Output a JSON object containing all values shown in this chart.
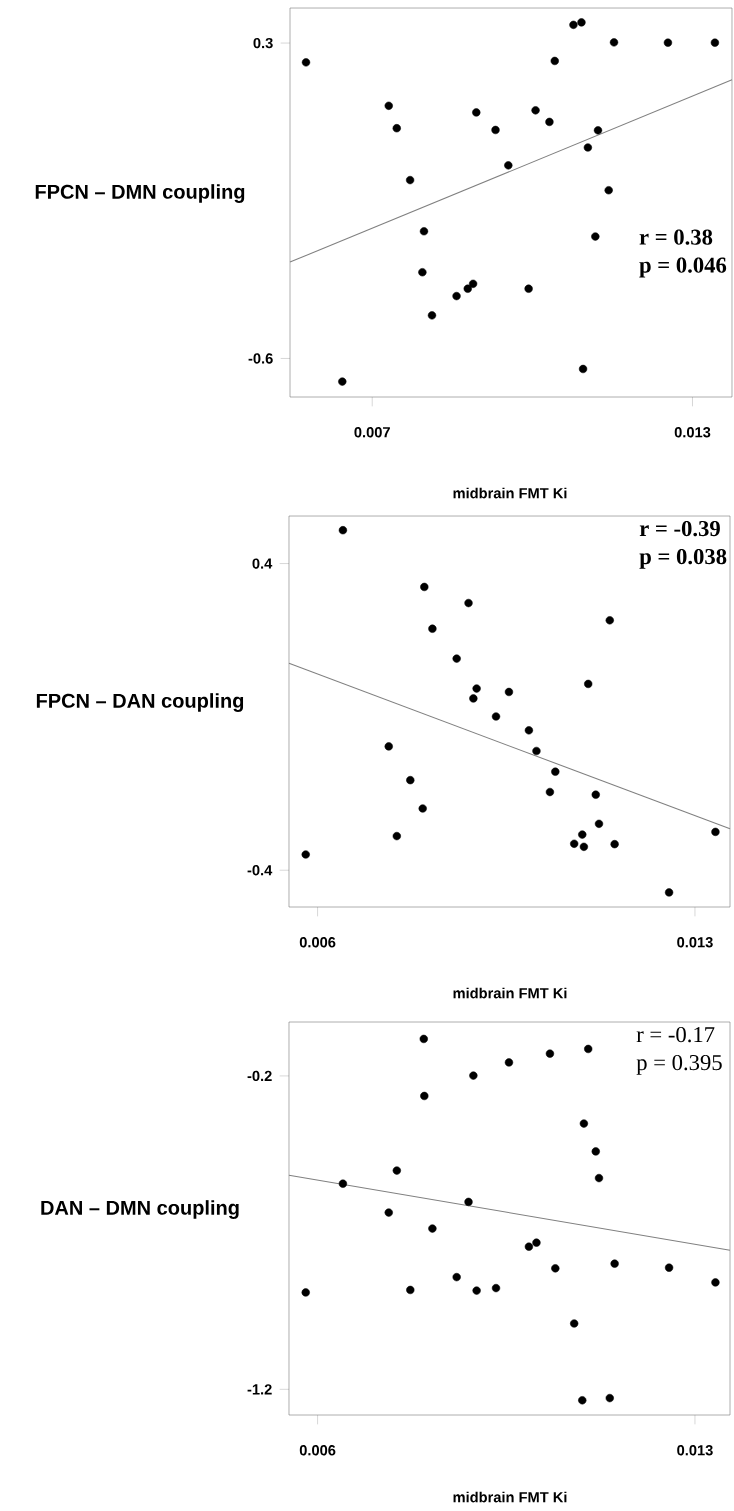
{
  "chart_data": [
    {
      "type": "scatter",
      "ylabel": "FPCN – DMN coupling",
      "xlabel": "midbrain FMT Ki",
      "xlim": [
        0.00546,
        0.01374
      ],
      "ylim": [
        -0.71,
        0.4
      ],
      "xticks": [
        0.007,
        0.013
      ],
      "yticks": [
        -0.6,
        0.3
      ],
      "series": [
        {
          "marker": "circle",
          "color": "#000000",
          "x": [
            0.00576,
            0.00644,
            0.00731,
            0.00746,
            0.00771,
            0.00797,
            0.00794,
            0.00812,
            0.00858,
            0.00879,
            0.00889,
            0.00895,
            0.00931,
            0.00955,
            0.00993,
            0.01006,
            0.01032,
            0.01042,
            0.01077,
            0.01092,
            0.01095,
            0.01104,
            0.01123,
            0.01118,
            0.01143,
            0.01153,
            0.01254,
            0.01342
          ],
          "values": [
            0.245,
            -0.666,
            0.121,
            0.057,
            -0.091,
            -0.237,
            -0.354,
            -0.477,
            -0.422,
            -0.401,
            -0.387,
            0.102,
            0.052,
            -0.049,
            -0.401,
            0.108,
            0.075,
            0.249,
            0.352,
            0.359,
            -0.63,
            0.002,
            0.051,
            -0.252,
            -0.12,
            0.302,
            0.301,
            0.301
          ]
        },
        {
          "type": "line",
          "marker": "none",
          "color": "#808080",
          "x": [
            0.00546,
            0.01374
          ],
          "values": [
            -0.325,
            0.195
          ]
        }
      ],
      "annotations": [
        "r = 0.38",
        "p = 0.046"
      ]
    },
    {
      "type": "scatter",
      "ylabel": "FPCN – DAN coupling",
      "xlabel": "midbrain FMT Ki",
      "xlim": [
        0.00547,
        0.01365
      ],
      "ylim": [
        -0.496,
        0.524
      ],
      "xticks": [
        0.006,
        0.013
      ],
      "yticks": [
        -0.4,
        0.4
      ],
      "series": [
        {
          "marker": "circle",
          "color": "#000000",
          "x": [
            0.00578,
            0.00647,
            0.00732,
            0.00747,
            0.00772,
            0.00798,
            0.00795,
            0.00813,
            0.00858,
            0.0088,
            0.00889,
            0.00895,
            0.00931,
            0.00955,
            0.00992,
            0.01006,
            0.01041,
            0.01031,
            0.01076,
            0.01091,
            0.01094,
            0.01102,
            0.01116,
            0.01122,
            0.01142,
            0.01151,
            0.01252,
            0.01338
          ],
          "values": [
            -0.359,
            0.487,
            -0.077,
            -0.311,
            -0.165,
            0.339,
            -0.239,
            0.23,
            0.152,
            0.297,
            0.048,
            0.074,
            0.001,
            0.065,
            -0.035,
            -0.089,
            -0.143,
            -0.196,
            -0.331,
            -0.307,
            -0.339,
            0.086,
            -0.203,
            -0.279,
            0.252,
            -0.332,
            -0.458,
            -0.3
          ]
        },
        {
          "type": "line",
          "marker": "none",
          "color": "#808080",
          "x": [
            0.00547,
            0.01365
          ],
          "values": [
            0.14,
            -0.292
          ]
        }
      ],
      "annotations": [
        "r = -0.39",
        "p = 0.038"
      ]
    },
    {
      "type": "scatter",
      "ylabel": "DAN – DMN coupling",
      "xlabel": "midbrain FMT Ki",
      "xlim": [
        0.00547,
        0.01365
      ],
      "ylim": [
        -1.282,
        -0.028
      ],
      "xticks": [
        0.006,
        0.013
      ],
      "yticks": [
        -1.2,
        -0.2
      ],
      "series": [
        {
          "marker": "circle",
          "color": "#000000",
          "x": [
            0.00578,
            0.00647,
            0.00732,
            0.00747,
            0.00772,
            0.00798,
            0.00797,
            0.00813,
            0.00858,
            0.0088,
            0.00889,
            0.00895,
            0.00931,
            0.00955,
            0.00992,
            0.01006,
            0.01041,
            0.01031,
            0.01076,
            0.01091,
            0.01094,
            0.01102,
            0.01116,
            0.01122,
            0.01142,
            0.01151,
            0.01252,
            0.01338
          ],
          "values": [
            -0.891,
            -0.544,
            -0.636,
            -0.502,
            -0.883,
            -0.264,
            -0.082,
            -0.687,
            -0.842,
            -0.602,
            -0.199,
            -0.885,
            -0.877,
            -0.157,
            -0.745,
            -0.732,
            -0.814,
            -0.129,
            -0.99,
            -1.235,
            -0.352,
            -0.114,
            -0.441,
            -0.526,
            -1.228,
            -0.799,
            -0.812,
            -0.859
          ]
        },
        {
          "type": "line",
          "marker": "none",
          "color": "#808080",
          "x": [
            0.00547,
            0.01365
          ],
          "values": [
            -0.517,
            -0.756
          ]
        }
      ],
      "annotations": [
        "r = -0.17",
        "p = 0.395"
      ]
    }
  ]
}
